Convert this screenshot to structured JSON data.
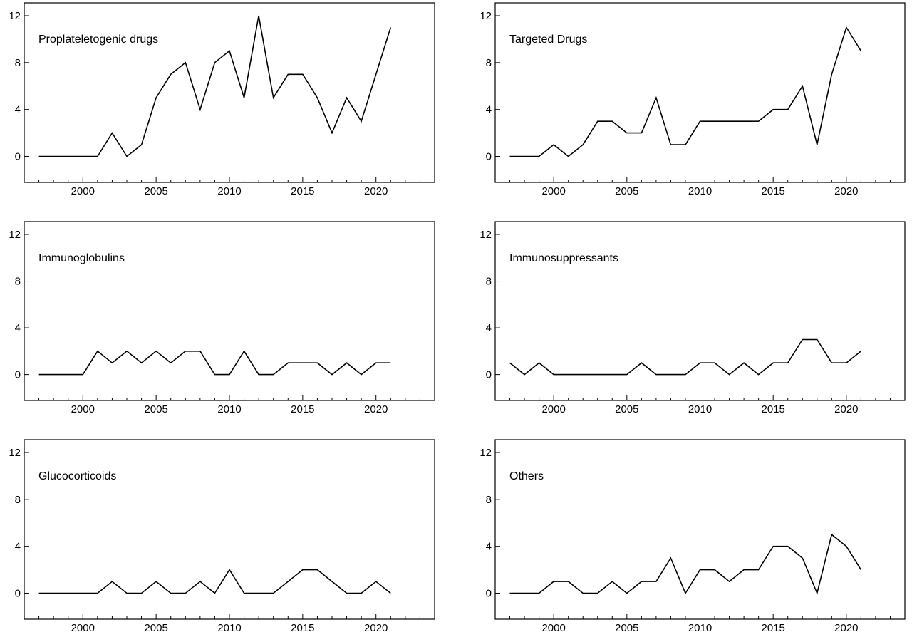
{
  "chart_data": [
    {
      "type": "line",
      "title": "Proplateletogenic drugs",
      "x": [
        1997,
        1998,
        1999,
        2000,
        2001,
        2002,
        2003,
        2004,
        2005,
        2006,
        2007,
        2008,
        2009,
        2010,
        2011,
        2012,
        2013,
        2014,
        2015,
        2016,
        2017,
        2018,
        2019,
        2020,
        2021
      ],
      "values": [
        0,
        0,
        0,
        0,
        0,
        2,
        0,
        1,
        5,
        7,
        8,
        4,
        8,
        9,
        5,
        12,
        5,
        7,
        7,
        5,
        2,
        5,
        3,
        7,
        11
      ],
      "xlim": [
        1996,
        2024
      ],
      "ylim": [
        -1,
        12
      ],
      "xticks": [
        2000,
        2005,
        2010,
        2015,
        2020
      ],
      "yticks": [
        0,
        4,
        8,
        12
      ],
      "grid": false
    },
    {
      "type": "line",
      "title": "Targeted Drugs",
      "x": [
        1997,
        1998,
        1999,
        2000,
        2001,
        2002,
        2003,
        2004,
        2005,
        2006,
        2007,
        2008,
        2009,
        2010,
        2011,
        2012,
        2013,
        2014,
        2015,
        2016,
        2017,
        2018,
        2019,
        2020,
        2021
      ],
      "values": [
        0,
        0,
        0,
        1,
        0,
        1,
        3,
        3,
        2,
        2,
        5,
        1,
        1,
        3,
        3,
        3,
        3,
        3,
        4,
        4,
        6,
        1,
        7,
        11,
        9
      ],
      "xlim": [
        1996,
        2024
      ],
      "ylim": [
        -1,
        12
      ],
      "xticks": [
        2000,
        2005,
        2010,
        2015,
        2020
      ],
      "yticks": [
        0,
        4,
        8,
        12
      ],
      "grid": false
    },
    {
      "type": "line",
      "title": "Immunoglobulins",
      "x": [
        1997,
        1998,
        1999,
        2000,
        2001,
        2002,
        2003,
        2004,
        2005,
        2006,
        2007,
        2008,
        2009,
        2010,
        2011,
        2012,
        2013,
        2014,
        2015,
        2016,
        2017,
        2018,
        2019,
        2020,
        2021
      ],
      "values": [
        0,
        0,
        0,
        0,
        2,
        1,
        2,
        1,
        2,
        1,
        2,
        2,
        0,
        0,
        2,
        0,
        0,
        1,
        1,
        1,
        0,
        1,
        0,
        1,
        1
      ],
      "xlim": [
        1996,
        2024
      ],
      "ylim": [
        -1,
        12
      ],
      "xticks": [
        2000,
        2005,
        2010,
        2015,
        2020
      ],
      "yticks": [
        0,
        4,
        8,
        12
      ],
      "grid": false
    },
    {
      "type": "line",
      "title": "Immunosuppressants",
      "x": [
        1997,
        1998,
        1999,
        2000,
        2001,
        2002,
        2003,
        2004,
        2005,
        2006,
        2007,
        2008,
        2009,
        2010,
        2011,
        2012,
        2013,
        2014,
        2015,
        2016,
        2017,
        2018,
        2019,
        2020,
        2021
      ],
      "values": [
        1,
        0,
        1,
        0,
        0,
        0,
        0,
        0,
        0,
        1,
        0,
        0,
        0,
        1,
        1,
        0,
        1,
        0,
        1,
        1,
        3,
        3,
        1,
        1,
        2
      ],
      "xlim": [
        1996,
        2024
      ],
      "ylim": [
        -1,
        12
      ],
      "xticks": [
        2000,
        2005,
        2010,
        2015,
        2020
      ],
      "yticks": [
        0,
        4,
        8,
        12
      ],
      "grid": false
    },
    {
      "type": "line",
      "title": "Glucocorticoids",
      "x": [
        1997,
        1998,
        1999,
        2000,
        2001,
        2002,
        2003,
        2004,
        2005,
        2006,
        2007,
        2008,
        2009,
        2010,
        2011,
        2012,
        2013,
        2014,
        2015,
        2016,
        2017,
        2018,
        2019,
        2020,
        2021
      ],
      "values": [
        0,
        0,
        0,
        0,
        0,
        1,
        0,
        0,
        1,
        0,
        0,
        1,
        0,
        2,
        0,
        0,
        0,
        1,
        2,
        2,
        1,
        0,
        0,
        1,
        0
      ],
      "xlim": [
        1996,
        2024
      ],
      "ylim": [
        -1,
        12
      ],
      "xticks": [
        2000,
        2005,
        2010,
        2015,
        2020
      ],
      "yticks": [
        0,
        4,
        8,
        12
      ],
      "grid": false
    },
    {
      "type": "line",
      "title": "Others",
      "x": [
        1997,
        1998,
        1999,
        2000,
        2001,
        2002,
        2003,
        2004,
        2005,
        2006,
        2007,
        2008,
        2009,
        2010,
        2011,
        2012,
        2013,
        2014,
        2015,
        2016,
        2017,
        2018,
        2019,
        2020,
        2021
      ],
      "values": [
        0,
        0,
        0,
        1,
        1,
        0,
        0,
        1,
        0,
        1,
        1,
        3,
        0,
        2,
        2,
        1,
        2,
        2,
        4,
        4,
        3,
        0,
        5,
        4,
        2
      ],
      "xlim": [
        1996,
        2024
      ],
      "ylim": [
        -1,
        12
      ],
      "xticks": [
        2000,
        2005,
        2010,
        2015,
        2020
      ],
      "yticks": [
        0,
        4,
        8,
        12
      ],
      "grid": false
    }
  ]
}
